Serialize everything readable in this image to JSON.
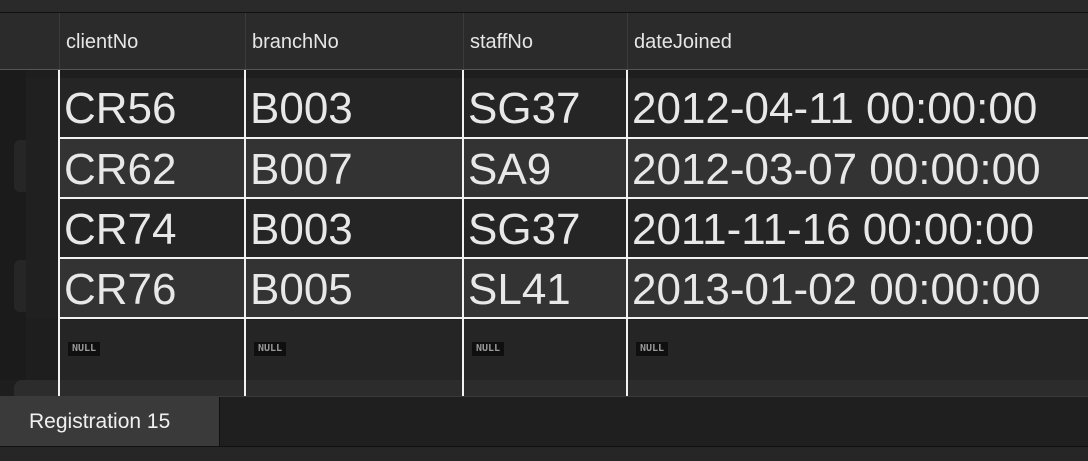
{
  "table": {
    "columns": [
      "clientNo",
      "branchNo",
      "staffNo",
      "dateJoined"
    ],
    "rows": [
      [
        "CR56",
        "B003",
        "SG37",
        "2012-04-11 00:00:00"
      ],
      [
        "CR62",
        "B007",
        "SA9",
        "2012-03-07 00:00:00"
      ],
      [
        "CR74",
        "B003",
        "SG37",
        "2011-11-16 00:00:00"
      ],
      [
        "CR76",
        "B005",
        "SL41",
        "2013-01-02 00:00:00"
      ]
    ],
    "null_label": "NULL"
  },
  "tabs": {
    "active_label": "Registration 15"
  },
  "colors": {
    "background": "#1e1e1e",
    "grid_line": "#f2f2f2",
    "text": "#e8e8e8"
  }
}
